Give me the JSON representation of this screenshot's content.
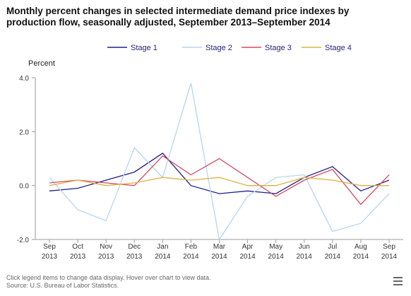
{
  "title": "Monthly percent changes in selected intermediate demand price indexes by production flow, seasonally adjusted, September 2013–September 2014",
  "footer": {
    "hint": "Click legend items to change data display. Hover over chart to view data.",
    "source": "Source: U.S. Bureau of Labor Statistics."
  },
  "menu_icon": "hamburger-menu-icon",
  "chart_data": {
    "type": "line",
    "title": "Monthly percent changes in selected intermediate demand price indexes by production flow, seasonally adjusted, September 2013–September 2014",
    "ylabel": "Percent",
    "xlabel": "",
    "ylim": [
      -2.0,
      4.0
    ],
    "yticks": [
      "4.0",
      "2.0",
      "0.0",
      "-2.0"
    ],
    "ytick_values": [
      4.0,
      2.0,
      0.0,
      -2.0
    ],
    "categories": [
      [
        "Sep",
        "2013"
      ],
      [
        "Oct",
        "2013"
      ],
      [
        "Nov",
        "2013"
      ],
      [
        "Dec",
        "2013"
      ],
      [
        "Jan",
        "2014"
      ],
      [
        "Feb",
        "2014"
      ],
      [
        "Mar",
        "2014"
      ],
      [
        "Apr",
        "2014"
      ],
      [
        "May",
        "2014"
      ],
      [
        "Jun",
        "2014"
      ],
      [
        "Jul",
        "2014"
      ],
      [
        "Aug",
        "2014"
      ],
      [
        "Sep",
        "2014"
      ]
    ],
    "legend_position": "top-center",
    "grid": false,
    "series": [
      {
        "name": "Stage 1",
        "color": "#1f1f8f",
        "values": [
          -0.2,
          -0.1,
          0.2,
          0.5,
          1.2,
          0.0,
          -0.3,
          -0.2,
          -0.3,
          0.3,
          0.7,
          -0.2,
          0.2
        ]
      },
      {
        "name": "Stage 2",
        "color": "#b8d4ee",
        "values": [
          0.3,
          -0.9,
          -1.3,
          1.4,
          0.3,
          3.8,
          -2.0,
          -0.4,
          0.3,
          0.4,
          -1.7,
          -1.4,
          -0.3
        ]
      },
      {
        "name": "Stage 3",
        "color": "#d9485f",
        "values": [
          0.1,
          0.2,
          0.1,
          0.0,
          1.1,
          0.4,
          1.0,
          0.3,
          -0.4,
          0.2,
          0.6,
          -0.7,
          0.4
        ]
      },
      {
        "name": "Stage 4",
        "color": "#e0b040",
        "values": [
          0.0,
          0.2,
          0.0,
          0.1,
          0.3,
          0.2,
          0.3,
          0.0,
          0.0,
          0.3,
          0.2,
          0.0,
          0.0
        ]
      }
    ]
  }
}
